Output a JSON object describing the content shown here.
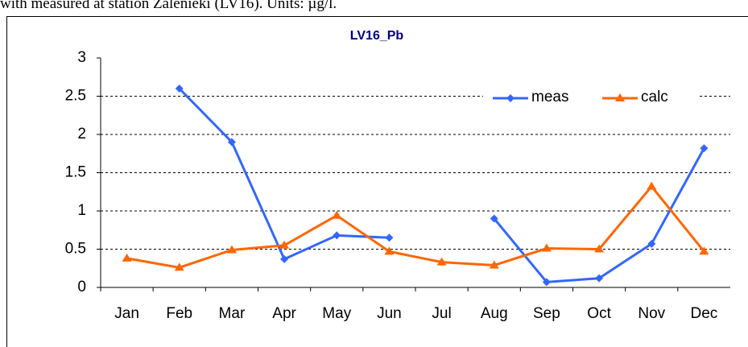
{
  "caption": "with measured at station Zalenieki (LV16). Units: µg/l.",
  "chart_data": {
    "type": "line",
    "title": "LV16_Pb",
    "categories": [
      "Jan",
      "Feb",
      "Mar",
      "Apr",
      "May",
      "Jun",
      "Jul",
      "Aug",
      "Sep",
      "Oct",
      "Nov",
      "Dec"
    ],
    "series": [
      {
        "name": "meas",
        "color": "#3366ff",
        "marker": "diamond",
        "values": [
          null,
          2.6,
          1.9,
          0.37,
          0.68,
          0.65,
          null,
          0.9,
          0.07,
          0.12,
          0.57,
          1.82
        ]
      },
      {
        "name": "calc",
        "color": "#ff6600",
        "marker": "triangle",
        "values": [
          0.38,
          0.26,
          0.49,
          0.55,
          0.94,
          0.47,
          0.33,
          0.29,
          0.51,
          0.5,
          1.32,
          0.47
        ]
      }
    ],
    "ylim": [
      0,
      3
    ],
    "yticks": [
      0,
      0.5,
      1,
      1.5,
      2,
      2.5,
      3
    ],
    "grid": true,
    "legend": "upper right"
  }
}
